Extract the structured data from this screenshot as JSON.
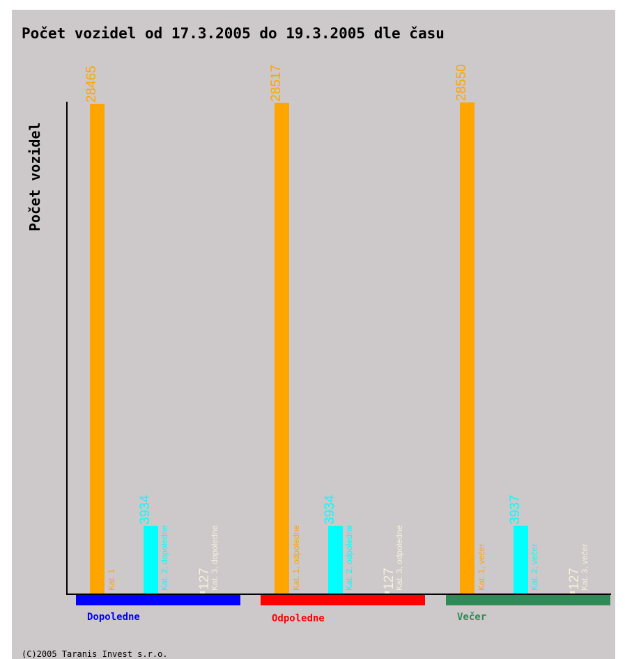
{
  "chart_data": {
    "type": "bar",
    "title": "Počet vozidel od 17.3.2005 do 19.3.2005 dle času",
    "ylabel": "Počet vozidel",
    "groups": [
      {
        "name": "Dopoledne",
        "color": "#0000ff",
        "bars": [
          {
            "label": "Kat. 1",
            "value": 28465,
            "color": "#ffa500"
          },
          {
            "label": "Kat. 2, dopoledne",
            "value": 3934,
            "color": "#00ffff"
          },
          {
            "label": "Kat. 3, dopoledne",
            "value": 127,
            "color": "#f5f0dc"
          }
        ]
      },
      {
        "name": "Odpoledne",
        "color": "#ff0000",
        "bars": [
          {
            "label": "Kat. 1, odpoledne",
            "value": 28517,
            "color": "#ffa500"
          },
          {
            "label": "Kat. 2, odpoledne",
            "value": 3934,
            "color": "#00ffff"
          },
          {
            "label": "Kat. 3, odpoledne",
            "value": 127,
            "color": "#f5f0dc"
          }
        ]
      },
      {
        "name": "Večer",
        "color": "#2e8b57",
        "bars": [
          {
            "label": "Kat. 1, večer",
            "value": 28550,
            "color": "#ffa500"
          },
          {
            "label": "Kat. 2, večer",
            "value": 3937,
            "color": "#00ffff"
          },
          {
            "label": "Kat. 3, večer",
            "value": 127,
            "color": "#f5f0dc"
          }
        ]
      }
    ]
  },
  "footer": {
    "copyright": "(C)2005 Taranis Invest s.r.o."
  }
}
